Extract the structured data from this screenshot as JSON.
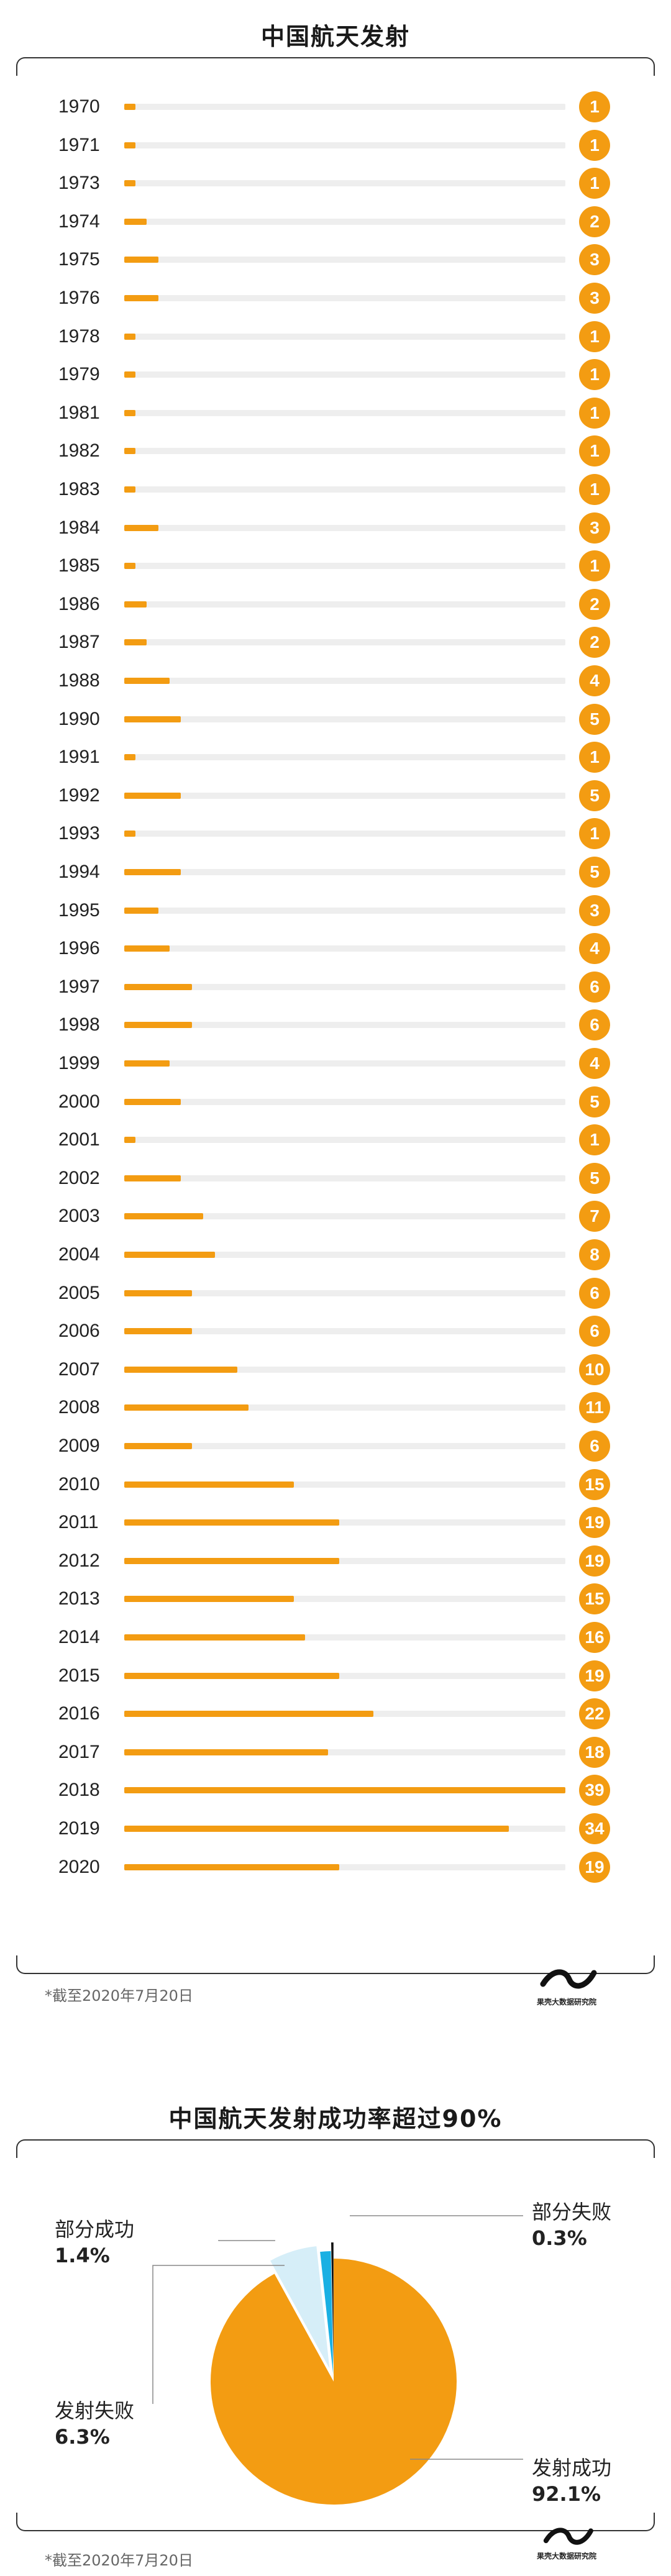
{
  "chart_data": [
    {
      "type": "bar",
      "title": "中国航天发射",
      "categories": [
        "1970",
        "1971",
        "1973",
        "1974",
        "1975",
        "1976",
        "1978",
        "1979",
        "1981",
        "1982",
        "1983",
        "1984",
        "1985",
        "1986",
        "1987",
        "1988",
        "1990",
        "1991",
        "1992",
        "1993",
        "1994",
        "1995",
        "1996",
        "1997",
        "1998",
        "1999",
        "2000",
        "2001",
        "2002",
        "2003",
        "2004",
        "2005",
        "2006",
        "2007",
        "2008",
        "2009",
        "2010",
        "2011",
        "2012",
        "2013",
        "2014",
        "2015",
        "2016",
        "2017",
        "2018",
        "2019",
        "2020"
      ],
      "values": [
        1,
        1,
        1,
        2,
        3,
        3,
        1,
        1,
        1,
        1,
        1,
        3,
        1,
        2,
        2,
        4,
        5,
        1,
        5,
        1,
        5,
        3,
        4,
        6,
        6,
        4,
        5,
        1,
        5,
        7,
        8,
        6,
        6,
        10,
        11,
        6,
        15,
        19,
        19,
        15,
        16,
        19,
        22,
        18,
        39,
        34,
        19
      ],
      "xmax": 39,
      "orientation": "horizontal",
      "bar_color": "#f39c12",
      "track_color": "#eeeeee"
    },
    {
      "type": "pie",
      "title": "中国航天发射成功率超过90%",
      "slices": [
        {
          "label": "发射成功",
          "value": 92.1,
          "value_text": "92.1%",
          "color": "#f39c12"
        },
        {
          "label": "发射失败",
          "value": 6.3,
          "value_text": "6.3%",
          "color": "#d6eef8"
        },
        {
          "label": "部分成功",
          "value": 1.4,
          "value_text": "1.4%",
          "color": "#1ab0e3"
        },
        {
          "label": "部分失败",
          "value": 0.3,
          "value_text": "0.3%",
          "color": "#111111"
        }
      ]
    }
  ],
  "notes": {
    "note1": "*截至2020年7月20日",
    "note2": "*截至2020年7月20日"
  },
  "logo": {
    "text": "果壳大数据研究院",
    "icon": "wave-logo-icon"
  }
}
